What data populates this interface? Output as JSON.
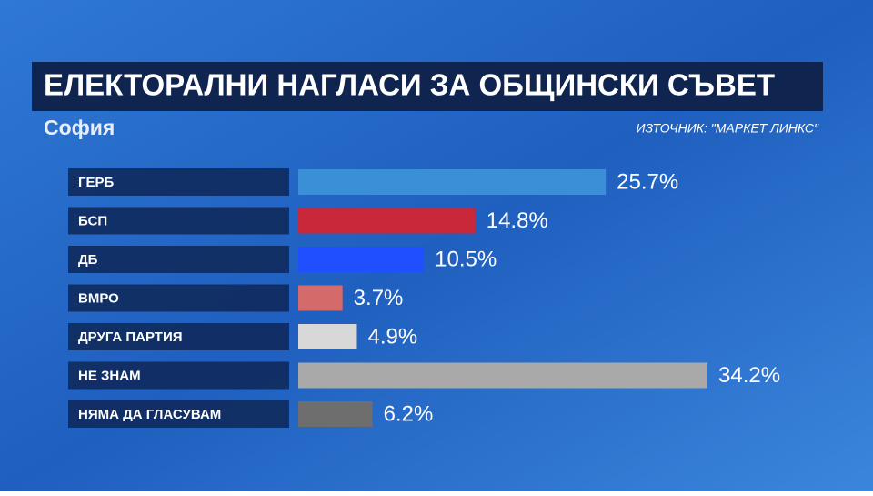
{
  "chart_data": {
    "type": "hbar",
    "title": "ЕЛЕКТОРАЛНИ НАГЛАСИ ЗА ОБЩИНСКИ СЪВЕТ",
    "subtitle": "София",
    "source": "ИЗТОЧНИК: \"МАРКЕТ ЛИНКС\"",
    "categories": [
      "ГЕРБ",
      "БСП",
      "ДБ",
      "ВМРО",
      "ДРУГА ПАРТИЯ",
      "НЕ ЗНАМ",
      "НЯМА ДА ГЛАСУВАМ"
    ],
    "values": [
      25.7,
      14.8,
      10.5,
      3.7,
      4.9,
      34.2,
      6.2
    ],
    "value_labels": [
      "25.7%",
      "14.8%",
      "10.5%",
      "3.7%",
      "4.9%",
      "34.2%",
      "6.2%"
    ],
    "colors": [
      "#3a8fd6",
      "#c8283a",
      "#1f4fff",
      "#d46a6a",
      "#d8d8d8",
      "#a9a9a9",
      "#6e6e6e"
    ]
  }
}
